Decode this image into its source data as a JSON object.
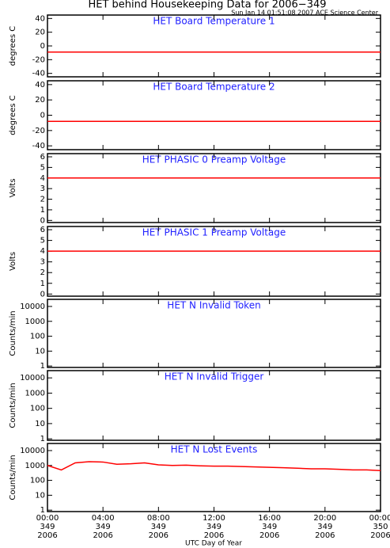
{
  "title": "HET behind Housekeeping Data for 2006−349",
  "subtitle": "Sun Jan 14 01:51:08 2007 ACE Science Center",
  "xlabel": "UTC Day of Year",
  "chart_data": [
    {
      "type": "line",
      "title": "HET Board Temperature 1",
      "ylabel": "degrees C",
      "x": [
        0,
        24
      ],
      "xlim": [
        0,
        24
      ],
      "xticks": [
        0,
        4,
        8,
        12,
        16,
        20,
        24
      ],
      "ylim": [
        -45,
        45
      ],
      "yticks": [
        -40,
        -20,
        0,
        20,
        40
      ],
      "series": [
        {
          "color": "#ff0000",
          "values": [
            -9,
            -9
          ]
        }
      ]
    },
    {
      "type": "line",
      "title": "HET Board Temperature 2",
      "ylabel": "degrees C",
      "x": [
        0,
        24
      ],
      "xlim": [
        0,
        24
      ],
      "xticks": [
        0,
        4,
        8,
        12,
        16,
        20,
        24
      ],
      "ylim": [
        -45,
        45
      ],
      "yticks": [
        -40,
        -20,
        0,
        20,
        40
      ],
      "series": [
        {
          "color": "#ff0000",
          "values": [
            -8,
            -8
          ]
        }
      ]
    },
    {
      "type": "line",
      "title": "HET PHASIC 0 Preamp Voltage",
      "ylabel": "Volts",
      "x": [
        0,
        24
      ],
      "xlim": [
        0,
        24
      ],
      "xticks": [
        0,
        4,
        8,
        12,
        16,
        20,
        24
      ],
      "ylim": [
        -0.2,
        6.3
      ],
      "yticks": [
        0,
        1,
        2,
        3,
        4,
        5,
        6
      ],
      "series": [
        {
          "color": "#ff0000",
          "values": [
            4,
            4
          ]
        }
      ]
    },
    {
      "type": "line",
      "title": "HET PHASIC 1 Preamp Voltage",
      "ylabel": "Volts",
      "x": [
        0,
        24
      ],
      "xlim": [
        0,
        24
      ],
      "xticks": [
        0,
        4,
        8,
        12,
        16,
        20,
        24
      ],
      "ylim": [
        -0.2,
        6.3
      ],
      "yticks": [
        0,
        1,
        2,
        3,
        4,
        5,
        6
      ],
      "series": [
        {
          "color": "#ff0000",
          "values": [
            4,
            4
          ]
        }
      ]
    },
    {
      "type": "line",
      "title": "HET N Invalid Token",
      "ylabel": "Counts/min",
      "log": true,
      "xlim": [
        0,
        24
      ],
      "xticks": [
        0,
        4,
        8,
        12,
        16,
        20,
        24
      ],
      "ylim": [
        0.8,
        30000
      ],
      "yticks": [
        1,
        10,
        100,
        1000,
        10000
      ]
    },
    {
      "type": "line",
      "title": "HET N Invalid Trigger",
      "ylabel": "Counts/min",
      "log": true,
      "xlim": [
        0,
        24
      ],
      "xticks": [
        0,
        4,
        8,
        12,
        16,
        20,
        24
      ],
      "ylim": [
        0.8,
        30000
      ],
      "yticks": [
        1,
        10,
        100,
        1000,
        10000
      ]
    },
    {
      "type": "line",
      "title": "HET N Lost Events",
      "ylabel": "Counts/min",
      "log": true,
      "x": [
        0,
        1,
        2,
        3,
        4,
        5,
        6,
        7,
        8,
        9,
        10,
        11,
        12,
        13,
        14,
        15,
        16,
        17,
        18,
        19,
        20,
        21,
        22,
        23,
        24
      ],
      "xlim": [
        0,
        24
      ],
      "xticks": [
        {
          "value": 0,
          "label": [
            "00:00",
            "349",
            "2006"
          ]
        },
        {
          "value": 4,
          "label": [
            "04:00",
            "349",
            "2006"
          ]
        },
        {
          "value": 8,
          "label": [
            "08:00",
            "349",
            "2006"
          ]
        },
        {
          "value": 12,
          "label": [
            "12:00",
            "349",
            "2006"
          ]
        },
        {
          "value": 16,
          "label": [
            "16:00",
            "349",
            "2006"
          ]
        },
        {
          "value": 20,
          "label": [
            "20:00",
            "349",
            "2006"
          ]
        },
        {
          "value": 24,
          "label": [
            "00:00",
            "350",
            "2006"
          ]
        }
      ],
      "ylim": [
        0.8,
        30000
      ],
      "yticks": [
        1,
        10,
        100,
        1000,
        10000
      ],
      "series": [
        {
          "color": "#ff0000",
          "values": [
            1000,
            500,
            1500,
            1800,
            1700,
            1200,
            1300,
            1500,
            1100,
            1000,
            1050,
            950,
            900,
            900,
            850,
            800,
            750,
            700,
            650,
            600,
            600,
            550,
            500,
            500,
            450
          ]
        }
      ]
    }
  ]
}
